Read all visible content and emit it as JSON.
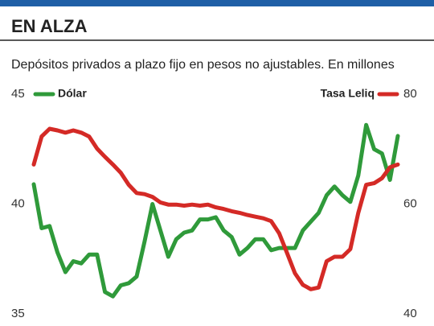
{
  "chart_data": {
    "type": "line",
    "title": "EN ALZA",
    "subtitle": "Depósitos privados a plazo fijo en pesos no ajustables. En millones",
    "categories": [
      null,
      null,
      null,
      null,
      null,
      null,
      null,
      null,
      null,
      null,
      null,
      null,
      null,
      null,
      null,
      null,
      null,
      null,
      null,
      null,
      null,
      null,
      null,
      null,
      null,
      null,
      null,
      null,
      null,
      null,
      null,
      null,
      null,
      null,
      null,
      null,
      null,
      null,
      null,
      null,
      null,
      null,
      null,
      null,
      null,
      null,
      null
    ],
    "ylim": [
      35,
      45
    ],
    "yticks": [
      35,
      40,
      45
    ],
    "y2lim": [
      40,
      80
    ],
    "y2ticks": [
      40,
      60,
      80
    ],
    "grid": false,
    "series": [
      {
        "name": "Dólar",
        "color": "#2f9a3a",
        "axis": "y",
        "values": [
          40.9,
          38.9,
          39.0,
          37.8,
          36.9,
          37.4,
          37.3,
          37.7,
          37.7,
          36.0,
          35.8,
          36.3,
          36.4,
          36.7,
          38.3,
          40.0,
          38.8,
          37.6,
          38.4,
          38.7,
          38.8,
          39.3,
          39.3,
          39.4,
          38.8,
          38.5,
          37.7,
          38.0,
          38.4,
          38.4,
          37.9,
          38.0,
          38.0,
          38.0,
          38.8,
          39.2,
          39.6,
          40.4,
          40.8,
          40.4,
          40.1,
          41.3,
          43.6,
          42.5,
          42.3,
          41.1,
          43.1
        ]
      },
      {
        "name": "Tasa Leliq",
        "color": "#d42a26",
        "axis": "y2",
        "values": [
          67.2,
          72.3,
          73.7,
          73.4,
          73.0,
          73.4,
          73.0,
          72.3,
          70.1,
          68.6,
          67.2,
          65.7,
          63.5,
          62.0,
          61.8,
          61.3,
          60.3,
          59.9,
          59.9,
          59.7,
          59.9,
          59.7,
          59.9,
          59.4,
          59.1,
          58.7,
          58.4,
          58.0,
          57.7,
          57.4,
          56.9,
          54.7,
          51.1,
          47.4,
          45.3,
          44.5,
          44.8,
          49.6,
          50.4,
          50.4,
          51.8,
          58.4,
          63.5,
          63.8,
          64.7,
          66.7,
          67.2
        ]
      }
    ]
  }
}
